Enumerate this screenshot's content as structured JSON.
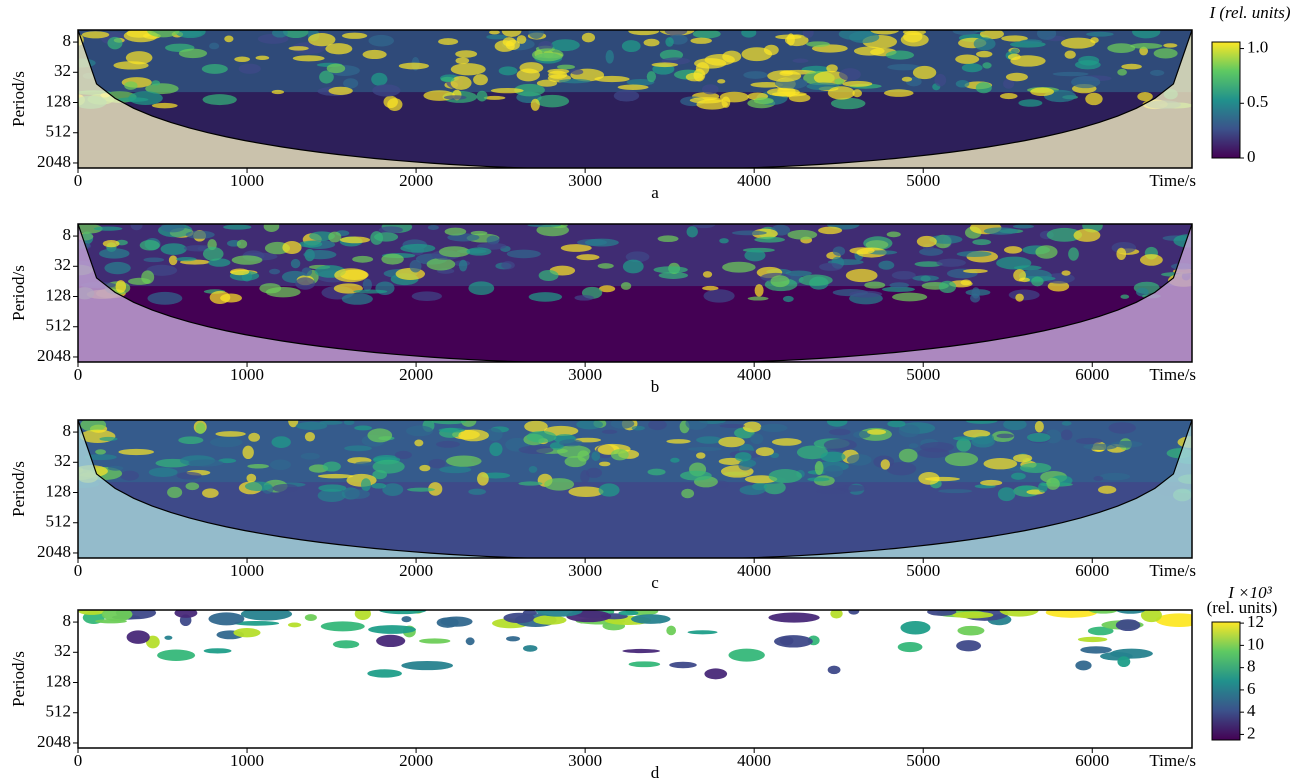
{
  "chart_data": [
    {
      "type": "heatmap",
      "panel_label": "a",
      "ylabel": "Period/s",
      "xlabel": "Time/s",
      "log_y": true,
      "xlim": [
        0,
        6590
      ],
      "xticks": [
        0,
        1000,
        2000,
        3000,
        4000,
        5000
      ],
      "ylim": [
        4.6,
        2580
      ],
      "yticks": [
        8,
        32,
        128,
        512,
        2048
      ],
      "colorbar": {
        "title": "I (rel. units)",
        "lim": [
          0,
          1.06
        ],
        "ticks": [
          {
            "value": 1,
            "label": "1.0"
          },
          0.5,
          0
        ]
      }
    },
    {
      "type": "heatmap",
      "panel_label": "b",
      "ylabel": "Period/s",
      "xlabel": "Time/s",
      "log_y": true,
      "xlim": [
        0,
        6590
      ],
      "xticks": [
        0,
        1000,
        2000,
        3000,
        4000,
        5000,
        6000
      ],
      "ylim": [
        4.6,
        2580
      ],
      "yticks": [
        8,
        32,
        128,
        512,
        2048
      ]
    },
    {
      "type": "heatmap",
      "panel_label": "c",
      "ylabel": "Period/s",
      "xlabel": "Time/s",
      "log_y": true,
      "xlim": [
        0,
        6590
      ],
      "xticks": [
        0,
        1000,
        2000,
        3000,
        4000,
        5000,
        6000
      ],
      "ylim": [
        4.6,
        2580
      ],
      "yticks": [
        8,
        32,
        128,
        512,
        2048
      ]
    },
    {
      "type": "heatmap",
      "panel_label": "d",
      "ylabel": "Period/s",
      "xlabel": "Time/s",
      "log_y": true,
      "xlim": [
        0,
        6590
      ],
      "xticks": [
        0,
        1000,
        2000,
        3000,
        4000,
        5000,
        6000
      ],
      "ylim": [
        4.6,
        2580
      ],
      "yticks": [
        8,
        32,
        128,
        512,
        2048
      ],
      "colorbar": {
        "title": "I ×10³",
        "subtitle": "(rel. units)",
        "lim": [
          1.5,
          12.1
        ],
        "ticks": [
          12,
          10,
          8,
          6,
          4,
          2
        ]
      }
    }
  ]
}
